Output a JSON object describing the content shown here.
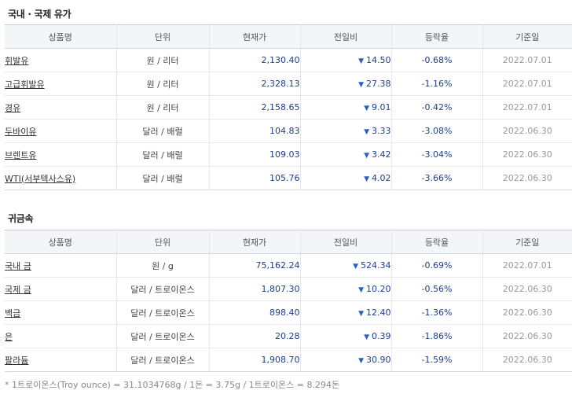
{
  "oil": {
    "title": "국내 · 국제 유가",
    "headers": [
      "상품명",
      "단위",
      "현재가",
      "전일비",
      "등락율",
      "기준일"
    ],
    "arrow": "▼",
    "rows": [
      {
        "name": "휘발유",
        "unit": "원 / 리터",
        "price": "2,130.40",
        "diff": "14.50",
        "rate": "-0.68%",
        "date": "2022.07.01"
      },
      {
        "name": "고급휘발유",
        "unit": "원 / 리터",
        "price": "2,328.13",
        "diff": "27.38",
        "rate": "-1.16%",
        "date": "2022.07.01"
      },
      {
        "name": "경유",
        "unit": "원 / 리터",
        "price": "2,158.65",
        "diff": "9.01",
        "rate": "-0.42%",
        "date": "2022.07.01"
      },
      {
        "name": "두바이유",
        "unit": "달러 / 배럴",
        "price": "104.83",
        "diff": "3.33",
        "rate": "-3.08%",
        "date": "2022.06.30"
      },
      {
        "name": "브렌트유",
        "unit": "달러 / 배럴",
        "price": "109.03",
        "diff": "3.42",
        "rate": "-3.04%",
        "date": "2022.06.30"
      },
      {
        "name": "WTI(서부텍사스유)",
        "unit": "달러 / 배럴",
        "price": "105.76",
        "diff": "4.02",
        "rate": "-3.66%",
        "date": "2022.06.30"
      }
    ]
  },
  "metal": {
    "title": "귀금속",
    "headers": [
      "상품명",
      "단위",
      "현재가",
      "전일비",
      "등락율",
      "기준일"
    ],
    "arrow": "▼",
    "rows": [
      {
        "name": "국내 금",
        "unit": "원 / g",
        "price": "75,162.24",
        "diff": "524.34",
        "rate": "-0.69%",
        "date": "2022.07.01"
      },
      {
        "name": "국제 금",
        "unit": "달러 / 트로이온스",
        "price": "1,807.30",
        "diff": "10.20",
        "rate": "-0.56%",
        "date": "2022.06.30"
      },
      {
        "name": "백금",
        "unit": "달러 / 트로이온스",
        "price": "898.40",
        "diff": "12.40",
        "rate": "-1.36%",
        "date": "2022.06.30"
      },
      {
        "name": "은",
        "unit": "달러 / 트로이온스",
        "price": "20.28",
        "diff": "0.39",
        "rate": "-1.86%",
        "date": "2022.06.30"
      },
      {
        "name": "팔라듐",
        "unit": "달러 / 트로이온스",
        "price": "1,908.70",
        "diff": "30.90",
        "rate": "-1.59%",
        "date": "2022.06.30"
      }
    ]
  },
  "footnote": "* 1트로이온스(Troy ounce) = 31.1034768g / 1돈 = 3.75g / 1트로이온스 = 8.294돈",
  "colors": {
    "price": "#1d3e8a",
    "arrow_down": "#2a5fc6",
    "date": "#999999",
    "header_bg": "#f4f5f8"
  }
}
